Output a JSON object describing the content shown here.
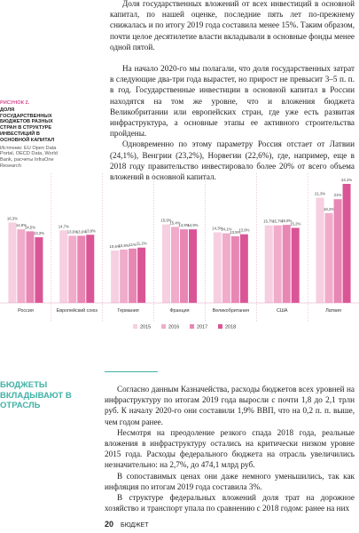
{
  "body_top": [
    "Доля государственных вложений от всех инвестиций в основной капитал, по нашей оценке, последние пять лет по-прежнему снижалась и по итогу 2019 года составила менее 15%. Таким образом, почти целое десятилетие власти вкладывали в основные фонды менее одной пятой.",
    "На начало 2020-го мы полагали, что доля государственных затрат в следующие два-три года вырастет, но прирост не превысит 3–5 п. п. в год. Государственные инвестиции в основной капитал в России находятся на том же уровне, что и вложения бюджета Великобритании или европейских стран, где уже есть развитая инфраструктура, а основные этапы ее активного строительства пройдены.",
    "Одновременно по этому параметру Россия отстает от Латвии (24,1%), Венгрии (23,2%), Норвегии (22,6%), где, например, еще в 2018 году правительство инвестировало более 20% от всего объема вложений в основной капитал."
  ],
  "figure": {
    "label": "РИСУНОК 2.",
    "title": "ДОЛЯ ГОСУДАРСТВЕННЫХ БЮДЖЕТОВ РАЗНЫХ СТРАН В СТРУКТУРЕ ИНВЕСТИЦИЙ В ОСНОВНОЙ КАПИТАЛ",
    "source": "Источник: EU Open Data Portal, OECD Data, World Bank, расчеты InfraOne Research"
  },
  "chart_data": {
    "type": "bar",
    "categories": [
      "Россия",
      "Европейский союз",
      "Германия",
      "Франция",
      "Великобритания",
      "США",
      "Латвия"
    ],
    "ylim": [
      0,
      25
    ],
    "series": [
      {
        "name": "2015",
        "color": "#f6cfe0",
        "values": [
          16.3,
          14.7,
          10.6,
          15.9,
          14.3,
          15.7,
          21.3
        ],
        "value_labels": [
          "16,3%",
          "14,7%",
          "10,6%",
          "15,9%",
          "14,3%",
          "15,7%",
          "21,3%"
        ]
      },
      {
        "name": "2016",
        "color": "#f0acca",
        "values": [
          14.9,
          13.6,
          10.8,
          15.4,
          14.1,
          15.7,
          18.2
        ],
        "value_labels": [
          "14,9%",
          "13,6%",
          "10,8%",
          "15,4%",
          "14,1%",
          "15,7%",
          "18,2%"
        ]
      },
      {
        "name": "2017",
        "color": "#e886b4",
        "values": [
          14.5,
          13.6,
          11,
          14.9,
          13.5,
          15.8,
          21
        ],
        "value_labels": [
          "14,5%",
          "13,6%",
          "11%",
          "14,9%",
          "13,5%",
          "15,8%",
          "21%"
        ]
      },
      {
        "name": "2018",
        "color": "#da5596",
        "values": [
          13.3,
          13.8,
          11.2,
          14.9,
          13.9,
          15.2,
          24.1
        ],
        "value_labels": [
          "13,3%",
          "13,8%",
          "11,2%",
          "14,9%",
          "13,9%",
          "15,2%",
          "24,1%"
        ]
      }
    ]
  },
  "section_heading": "БЮДЖЕТЫ ВКЛАДЫВАЮТ В ОТРАСЛЬ",
  "body_bottom": [
    "Согласно данным Казначейства, расходы бюджетов всех уровней на инфраструктуру по итогам 2019 года выросли с почти 1,8 до 2,1 трлн руб. К началу 2020-го они составили 1,9% ВВП, что на 0,2 п. п. выше, чем годом ранее.",
    "Несмотря на преодоление резкого спада 2018 года, реальные вложения в инфраструктуру остались на критически низком уровне 2015 года. Расходы федерального бюджета на отрасль увеличились незначительно: на 2,7%, до 474,1 млрд руб.",
    "В сопоставимых ценах они даже немного уменьшились, так как инфляция по итогам 2019 года составила 3%.",
    "В структуре федеральных вложений доля трат на дорожное хозяйство и транспорт упала по сравнению с 2018 годом: ранее на них"
  ],
  "footer": {
    "page": "20",
    "section": "БЮДЖЕТ"
  }
}
